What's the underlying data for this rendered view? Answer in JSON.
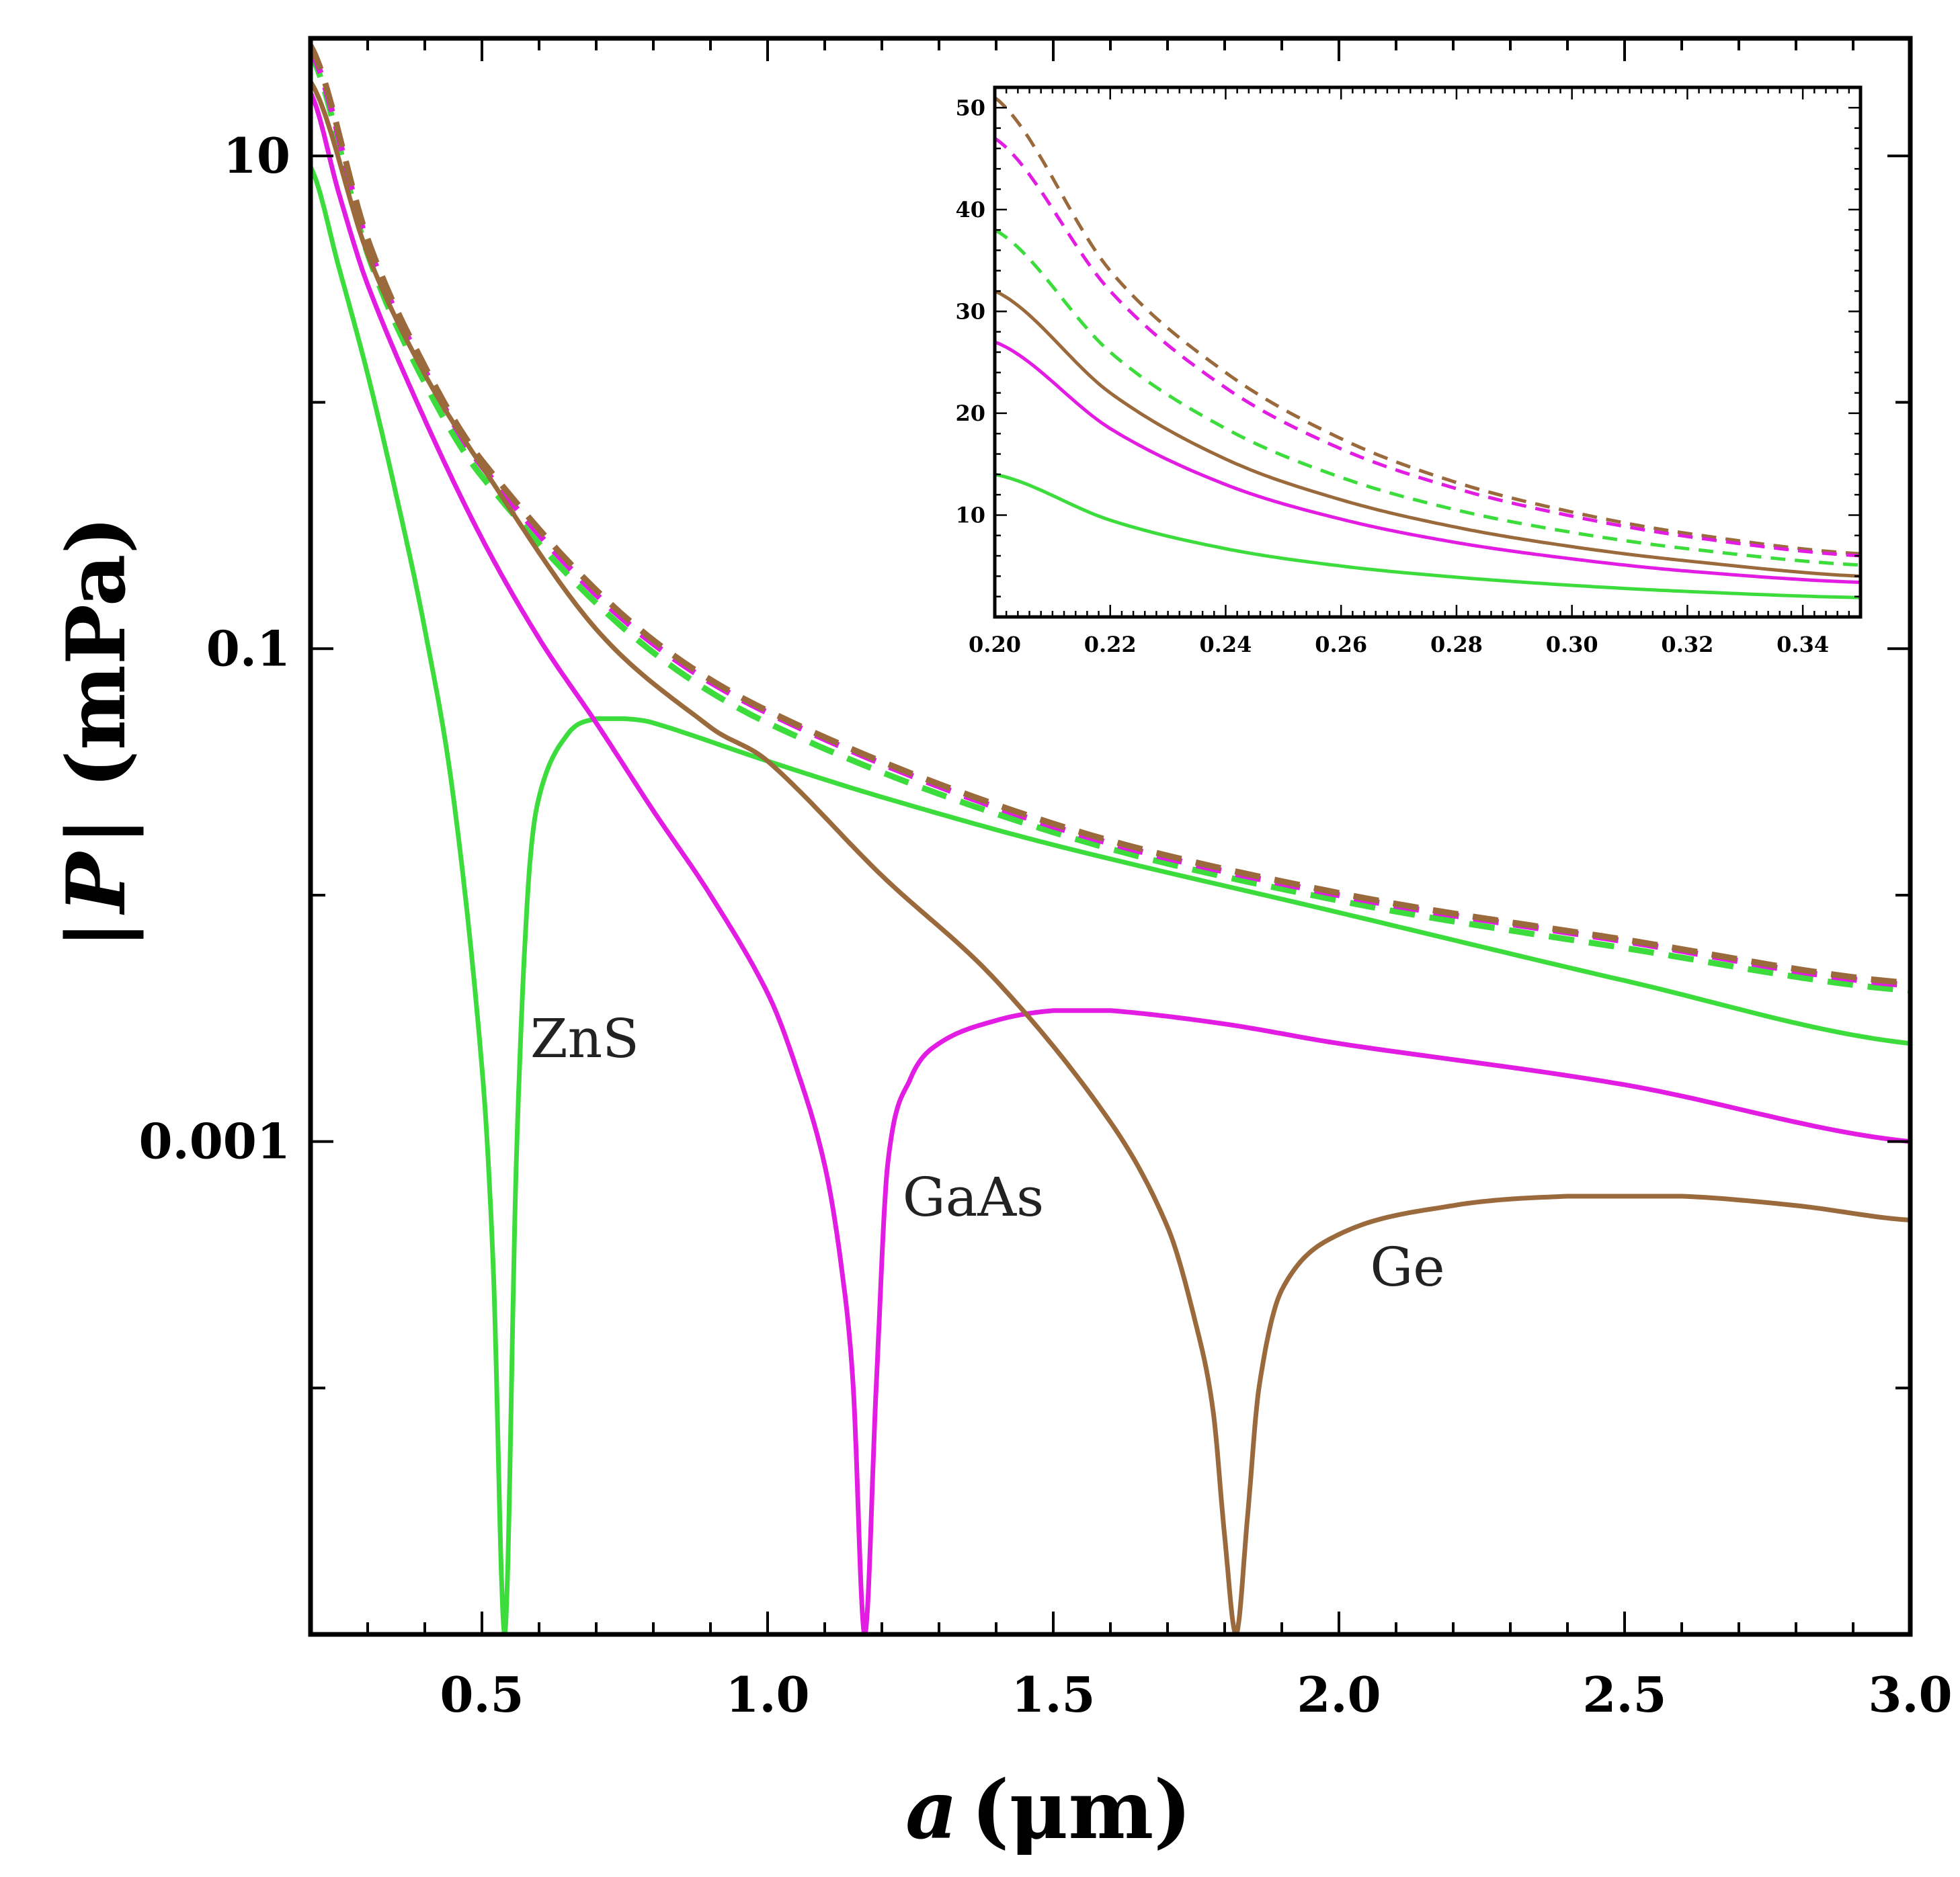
{
  "chart_data": [
    {
      "type": "line",
      "id": "main",
      "xlabel_italic": "a",
      "xlabel_rest": "(μm)",
      "ylabel_italic": "P",
      "ylabel_pre": "|",
      "ylabel_rest": "| (mPa)",
      "xlim": [
        0.2,
        3.0
      ],
      "y_scale": "log",
      "ylim": [
        1e-05,
        30
      ],
      "x_ticks": [
        0.5,
        1.0,
        1.5,
        2.0,
        2.5,
        3.0
      ],
      "x_tick_labels": [
        "0.5",
        "1.0",
        "1.5",
        "2.0",
        "2.5",
        "3.0"
      ],
      "y_ticks": [
        10,
        0.1,
        0.001
      ],
      "y_tick_labels": [
        "10",
        "0.1",
        "0.001"
      ],
      "colors": {
        "ZnS": "#3ddc3d",
        "GaAs": "#e21ce2",
        "Ge": "#9a6a3c"
      },
      "series": [
        {
          "name": "ZnS",
          "style": "solid",
          "color_key": "ZnS",
          "x": [
            0.2,
            0.25,
            0.3,
            0.35,
            0.4,
            0.45,
            0.5,
            0.52,
            0.54,
            0.56,
            0.58,
            0.6,
            0.65,
            0.7,
            0.75,
            0.8,
            1.0,
            1.2,
            1.5,
            2.0,
            2.5,
            3.0
          ],
          "y": [
            9,
            3.5,
            1.3,
            0.42,
            0.12,
            0.025,
            0.002,
            0.0003,
            1e-05,
            0.0008,
            0.01,
            0.025,
            0.045,
            0.052,
            0.052,
            0.05,
            0.035,
            0.025,
            0.016,
            0.0085,
            0.0045,
            0.0025
          ]
        },
        {
          "name": "GaAs",
          "style": "solid",
          "color_key": "GaAs",
          "x": [
            0.2,
            0.25,
            0.3,
            0.4,
            0.5,
            0.6,
            0.7,
            0.8,
            0.9,
            1.0,
            1.05,
            1.1,
            1.13,
            1.15,
            1.17,
            1.19,
            1.21,
            1.25,
            1.3,
            1.4,
            1.5,
            1.6,
            1.8,
            2.0,
            2.5,
            3.0
          ],
          "y": [
            18,
            7,
            3,
            0.85,
            0.28,
            0.11,
            0.05,
            0.022,
            0.01,
            0.004,
            0.002,
            0.0008,
            0.0003,
            0.0001,
            1e-05,
            0.0001,
            0.0008,
            0.0018,
            0.0025,
            0.0031,
            0.0034,
            0.0034,
            0.003,
            0.0025,
            0.0017,
            0.001
          ]
        },
        {
          "name": "Ge",
          "style": "solid",
          "color_key": "Ge",
          "x": [
            0.2,
            0.3,
            0.4,
            0.5,
            0.7,
            0.9,
            1.0,
            1.2,
            1.4,
            1.6,
            1.7,
            1.75,
            1.78,
            1.8,
            1.82,
            1.84,
            1.86,
            1.9,
            2.0,
            2.2,
            2.4,
            2.6,
            2.8,
            3.0
          ],
          "y": [
            20,
            4,
            1.3,
            0.55,
            0.12,
            0.048,
            0.035,
            0.012,
            0.0045,
            0.0012,
            0.00045,
            0.00018,
            8e-05,
            2.5e-05,
            1e-05,
            3e-05,
            0.0001,
            0.00025,
            0.00042,
            0.00055,
            0.0006,
            0.0006,
            0.00055,
            0.00048
          ]
        },
        {
          "name": "ZnS (dashed)",
          "style": "dashed",
          "color_key": "ZnS",
          "x": [
            0.2,
            0.3,
            0.4,
            0.5,
            0.75,
            1.0,
            1.5,
            2.0,
            2.5,
            3.0
          ],
          "y": [
            26,
            4.0,
            1.2,
            0.5,
            0.12,
            0.05,
            0.018,
            0.0095,
            0.0061,
            0.0041
          ]
        },
        {
          "name": "GaAs (dashed)",
          "style": "dashed",
          "color_key": "GaAs",
          "x": [
            0.2,
            0.3,
            0.4,
            0.5,
            0.75,
            1.0,
            1.5,
            2.0,
            2.5,
            3.0
          ],
          "y": [
            27,
            4.4,
            1.35,
            0.55,
            0.13,
            0.055,
            0.019,
            0.01,
            0.0065,
            0.0043
          ]
        },
        {
          "name": "Ge (dashed)",
          "style": "dashed",
          "color_key": "Ge",
          "x": [
            0.2,
            0.3,
            0.4,
            0.5,
            0.75,
            1.0,
            1.5,
            2.0,
            2.5,
            3.0
          ],
          "y": [
            28,
            4.6,
            1.4,
            0.58,
            0.135,
            0.056,
            0.0195,
            0.0102,
            0.0066,
            0.0044
          ]
        }
      ],
      "annotations": [
        {
          "text": "ZnS",
          "x": 0.68,
          "y": 0.0022
        },
        {
          "text": "GaAs",
          "x": 1.36,
          "y": 0.0005
        },
        {
          "text": "Ge",
          "x": 2.12,
          "y": 0.00026
        }
      ]
    },
    {
      "type": "line",
      "id": "inset",
      "xlim": [
        0.2,
        0.35
      ],
      "ylim": [
        0,
        52
      ],
      "y_scale": "linear",
      "x_ticks": [
        0.2,
        0.22,
        0.24,
        0.26,
        0.28,
        0.3,
        0.32,
        0.34
      ],
      "x_tick_labels": [
        "0.20",
        "0.22",
        "0.24",
        "0.26",
        "0.28",
        "0.30",
        "0.32",
        "0.34"
      ],
      "y_ticks": [
        10,
        20,
        30,
        40,
        50
      ],
      "y_tick_labels": [
        "10",
        "20",
        "30",
        "40",
        "50"
      ],
      "series": [
        {
          "name": "Ge (dashed)",
          "style": "dashed",
          "color_key": "Ge",
          "x": [
            0.2,
            0.22,
            0.24,
            0.26,
            0.28,
            0.3,
            0.32,
            0.35
          ],
          "y": [
            51,
            34,
            24,
            17.5,
            13.2,
            10.3,
            8.2,
            6.2
          ]
        },
        {
          "name": "GaAs (dashed)",
          "style": "dashed",
          "color_key": "GaAs",
          "x": [
            0.2,
            0.22,
            0.24,
            0.26,
            0.28,
            0.3,
            0.32,
            0.35
          ],
          "y": [
            47,
            32,
            22.5,
            16.5,
            12.6,
            9.9,
            7.9,
            6.0
          ]
        },
        {
          "name": "ZnS (dashed)",
          "style": "dashed",
          "color_key": "ZnS",
          "x": [
            0.2,
            0.22,
            0.24,
            0.26,
            0.28,
            0.3,
            0.32,
            0.35
          ],
          "y": [
            38,
            26,
            18.5,
            13.7,
            10.5,
            8.3,
            6.7,
            5.1
          ]
        },
        {
          "name": "Ge",
          "style": "solid",
          "color_key": "Ge",
          "x": [
            0.2,
            0.22,
            0.24,
            0.26,
            0.28,
            0.3,
            0.32,
            0.35
          ],
          "y": [
            32,
            22,
            15.5,
            11.5,
            8.8,
            6.9,
            5.5,
            4.0
          ]
        },
        {
          "name": "GaAs",
          "style": "solid",
          "color_key": "GaAs",
          "x": [
            0.2,
            0.22,
            0.24,
            0.26,
            0.28,
            0.3,
            0.32,
            0.35
          ],
          "y": [
            27,
            18.5,
            13,
            9.6,
            7.3,
            5.7,
            4.5,
            3.4
          ]
        },
        {
          "name": "ZnS",
          "style": "solid",
          "color_key": "ZnS",
          "x": [
            0.2,
            0.22,
            0.24,
            0.26,
            0.28,
            0.3,
            0.32,
            0.35
          ],
          "y": [
            14,
            9.5,
            6.7,
            5.0,
            3.9,
            3.1,
            2.5,
            1.9
          ]
        }
      ]
    }
  ]
}
